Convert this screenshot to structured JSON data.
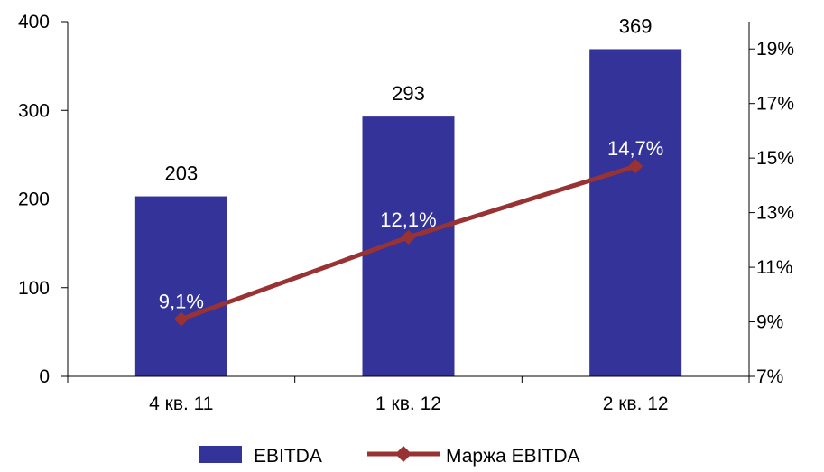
{
  "chart_data": {
    "type": "bar",
    "categories": [
      "4 кв. 11",
      "1 кв. 12",
      "2 кв. 12"
    ],
    "series": [
      {
        "name": "EBITDA",
        "type": "bar",
        "axis": "left",
        "values": [
          203,
          293,
          369
        ],
        "labels": [
          "203",
          "293",
          "369"
        ],
        "color": "#333399"
      },
      {
        "name": "Маржа EBITDA",
        "type": "line",
        "axis": "right",
        "values": [
          9.1,
          12.1,
          14.7
        ],
        "labels": [
          "9,1%",
          "12,1%",
          "14,7%"
        ],
        "color": "#993333"
      }
    ],
    "y_left": {
      "range": [
        0,
        400
      ],
      "ticks": [
        0,
        100,
        200,
        300,
        400
      ],
      "tick_labels": [
        "0",
        "100",
        "200",
        "300",
        "400"
      ]
    },
    "y_right": {
      "range": [
        7,
        20
      ],
      "ticks": [
        7,
        9,
        11,
        13,
        15,
        17,
        19
      ],
      "tick_labels": [
        "7%",
        "9%",
        "11%",
        "13%",
        "15%",
        "17%",
        "19%"
      ]
    },
    "grid": false,
    "legend_position": "bottom"
  }
}
